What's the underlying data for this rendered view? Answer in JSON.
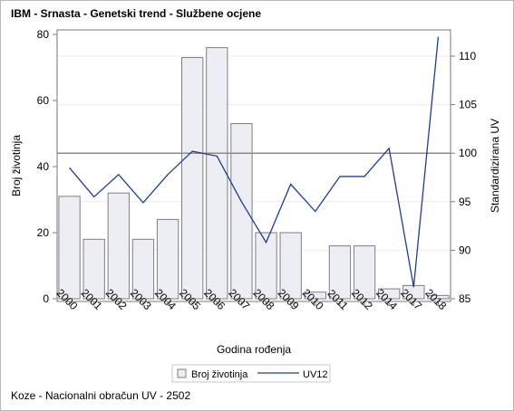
{
  "chart_title": "IBM - Srnasta - Genetski trend - Službene ocjene",
  "footnote": "Koze - Nacionalni obračun UV - 2502",
  "legend": {
    "bar_label": "Broj životinja",
    "line_label": "UV12"
  },
  "colors": {
    "bar_fill": "#eceef4",
    "bar_stroke": "#7e7e86",
    "line": "#1f3d8f",
    "reference_line": "#8a8a8a",
    "axis": "#7a7a7a",
    "grid": "#ececec"
  },
  "chart_data": {
    "type": "bar",
    "title": "IBM - Srnasta - Genetski trend - Službene ocjene",
    "xlabel": "Godina rođenja",
    "ylabel": "Broj životinja",
    "y2label": "Standardizirana UV",
    "categories": [
      "2000",
      "2001",
      "2002",
      "2003",
      "2004",
      "2005",
      "2006",
      "2007",
      "2008",
      "2009",
      "2010",
      "2011",
      "2012",
      "2014",
      "2017",
      "2018"
    ],
    "series": [
      {
        "name": "Broj životinja",
        "type": "bar",
        "axis": "left",
        "values": [
          31,
          18,
          32,
          18,
          24,
          73,
          76,
          53,
          20,
          20,
          2,
          16,
          16,
          3,
          4,
          1
        ]
      },
      {
        "name": "UV12",
        "type": "line",
        "axis": "right",
        "values": [
          98.5,
          95.5,
          97.8,
          94.9,
          97.8,
          100.2,
          99.7,
          95.0,
          90.8,
          96.8,
          94.0,
          97.6,
          97.6,
          100.5,
          86.2,
          112.0
        ]
      }
    ],
    "ylim": [
      0,
      80
    ],
    "yticks": [
      0,
      20,
      40,
      60,
      80
    ],
    "y2lim": [
      85,
      112
    ],
    "y2ticks": [
      85,
      90,
      95,
      100,
      105,
      110
    ],
    "reference_line_y2": 100,
    "grid": "horizontal",
    "legend_position": "bottom"
  }
}
